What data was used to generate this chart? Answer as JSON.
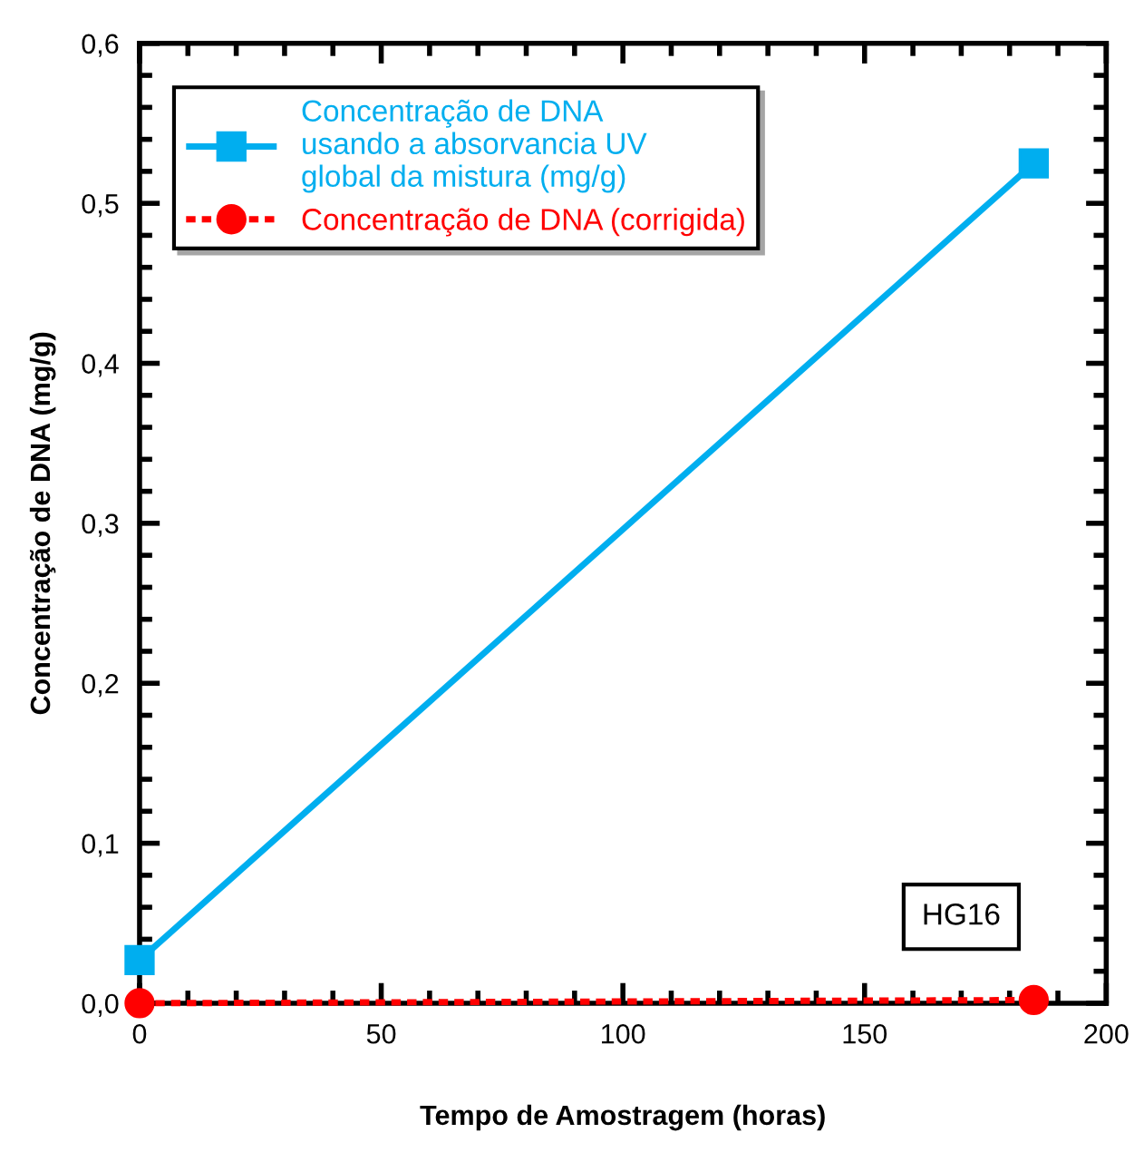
{
  "chart_data": {
    "type": "line",
    "xlabel": "Tempo de Amostragem (horas)",
    "ylabel": "Concentração de DNA (mg/g)",
    "x": [
      0,
      185
    ],
    "series": [
      {
        "name": "Concentração de DNA\nusando a absorvancia UV\nglobal da mistura (mg/g)",
        "color": "#00aeef",
        "values": [
          0.027,
          0.525
        ],
        "marker": "square",
        "line_style": "solid"
      },
      {
        "name": "Concentração de DNA (corrigida)",
        "color": "#ff0000",
        "values": [
          0.0,
          0.002
        ],
        "marker": "circle",
        "line_style": "dashed"
      }
    ],
    "xlim": [
      0,
      200
    ],
    "xticks": [
      0,
      50,
      100,
      150,
      200
    ],
    "ylim": [
      0,
      0.6
    ],
    "yticks": [
      {
        "value": 0,
        "label": "0,0"
      },
      {
        "value": 0.1,
        "label": "0,1"
      },
      {
        "value": 0.2,
        "label": "0,2"
      },
      {
        "value": 0.3,
        "label": "0,3"
      },
      {
        "value": 0.4,
        "label": "0,4"
      },
      {
        "value": 0.5,
        "label": "0,5"
      },
      {
        "value": 0.6,
        "label": "0,6"
      }
    ],
    "annotations": [
      "HG16"
    ],
    "legend": "top left",
    "grid": false
  }
}
